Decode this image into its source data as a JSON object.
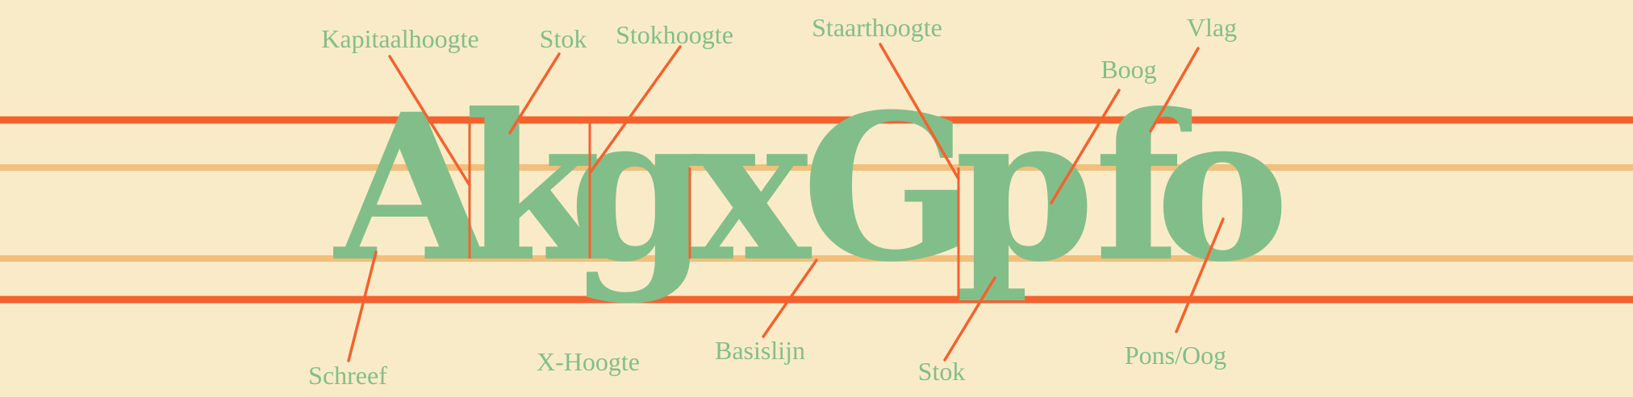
{
  "specimen": {
    "glyphs": [
      "A",
      "k",
      "g",
      "x",
      "G",
      "p",
      "f",
      "o"
    ]
  },
  "labels": {
    "kapitaalhoogte": "Kapitaalhoogte",
    "stok_top": "Stok",
    "stokhoogte": "Stokhoogte",
    "staarthoogte": "Staarthoogte",
    "vlag": "Vlag",
    "boog": "Boog",
    "schreef": "Schreef",
    "x_hoogte": "X-Hoogte",
    "basislijn": "Basislijn",
    "stok_bottom": "Stok",
    "pons_oog": "Pons/Oog"
  },
  "colors": {
    "background": "#faebc8",
    "guide_major": "#f5612c",
    "guide_minor": "#f0c07c",
    "glyph": "#82be8a",
    "label": "#82be8a",
    "leader": "#f5612c"
  }
}
